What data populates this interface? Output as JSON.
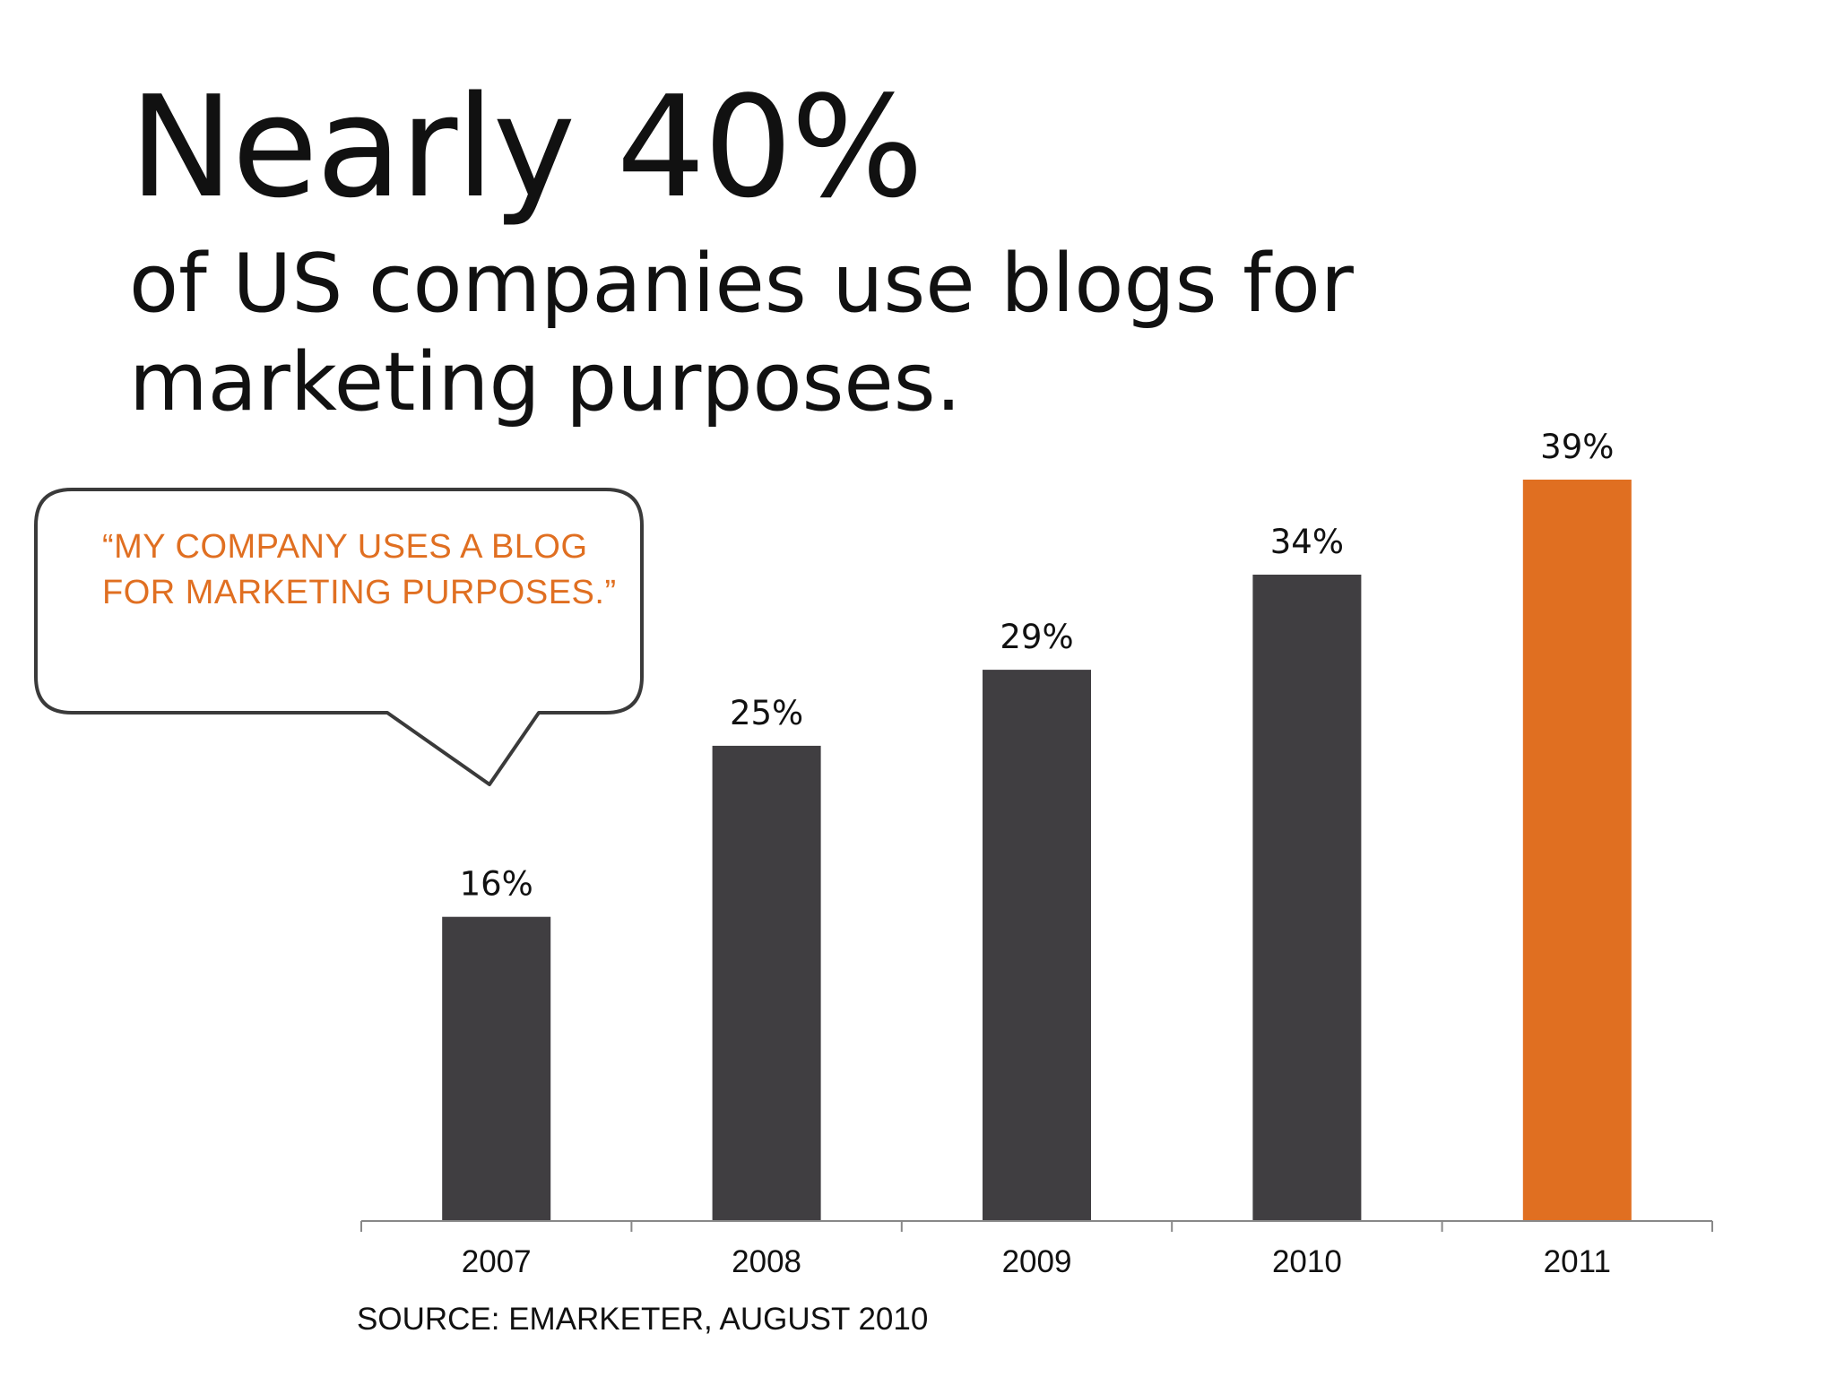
{
  "headline": "Nearly 40%",
  "subhead_lines": [
    "of US companies use blogs for",
    "marketing purposes."
  ],
  "callout_lines": [
    "“MY COMPANY USES A BLOG",
    "FOR MARKETING PURPOSES.”"
  ],
  "source": "SOURCE: EMARKETER, AUGUST 2010",
  "colors": {
    "bar": "#403e41",
    "highlight": "#e06f21",
    "axis": "#888888",
    "callout_border": "#3a3a3a"
  },
  "chart_data": {
    "type": "bar",
    "categories": [
      "2007",
      "2008",
      "2009",
      "2010",
      "2011"
    ],
    "values": [
      16,
      25,
      29,
      34,
      39
    ],
    "value_labels": [
      "16%",
      "25%",
      "29%",
      "34%",
      "39%"
    ],
    "highlight_category": "2011",
    "ylim": [
      0,
      39
    ],
    "grid": false,
    "title": "",
    "xlabel": "",
    "ylabel": ""
  }
}
